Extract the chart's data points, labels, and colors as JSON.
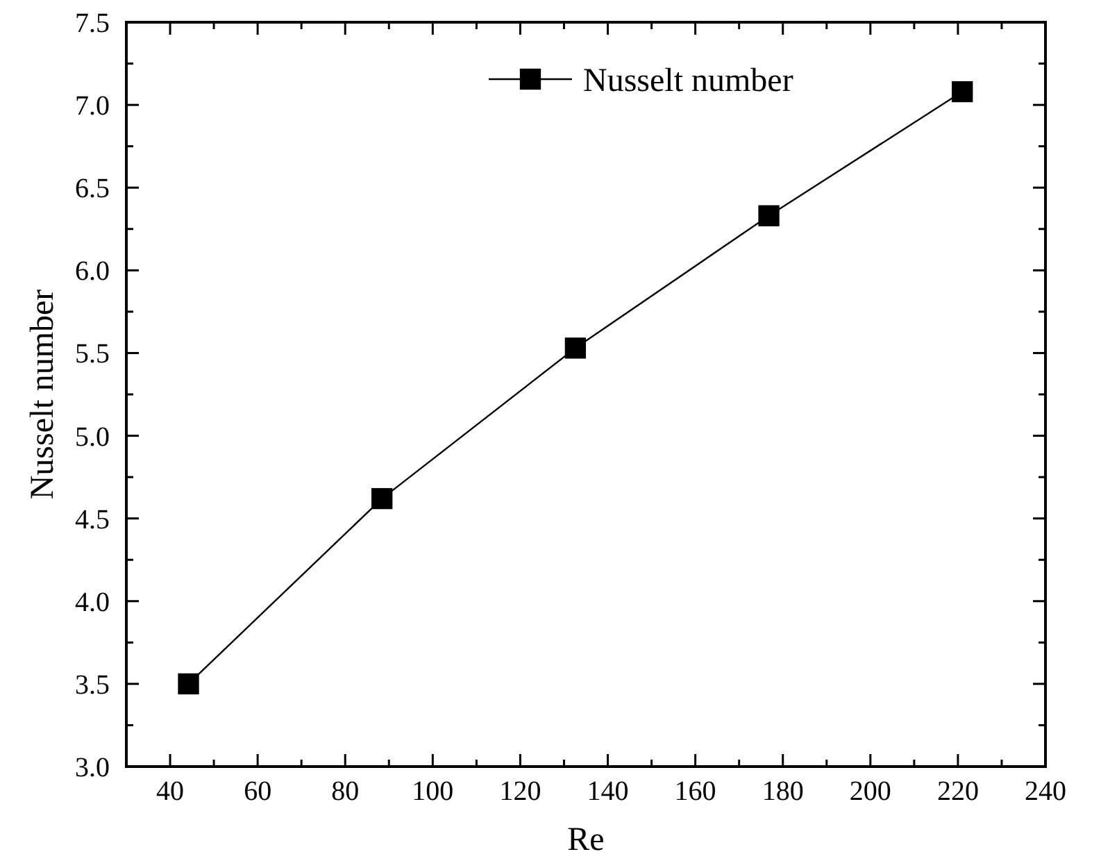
{
  "chart_data": {
    "type": "line",
    "xlabel": "Re",
    "ylabel": "Nusselt number",
    "x": [
      44.2,
      88.4,
      132.6,
      176.8,
      221
    ],
    "series": [
      {
        "name": "Nusselt number",
        "color": "#000000",
        "values": [
          3.5,
          4.62,
          5.53,
          6.33,
          7.08
        ]
      }
    ],
    "xlim": [
      30,
      240
    ],
    "xticks": [
      40,
      {
        "value": 50,
        "label": null
      },
      60,
      {
        "value": 70,
        "label": null
      },
      80,
      {
        "value": 90,
        "label": null
      },
      100,
      {
        "value": 110,
        "label": null
      },
      120,
      {
        "value": 130,
        "label": null
      },
      140,
      {
        "value": 150,
        "label": null
      },
      160,
      {
        "value": 170,
        "label": null
      },
      180,
      {
        "value": 190,
        "label": null
      },
      200,
      {
        "value": 210,
        "label": null
      },
      220,
      {
        "value": 230,
        "label": null
      },
      240
    ],
    "ylim": [
      3,
      7.5
    ],
    "yticks": [
      {
        "value": 3,
        "label": "3.0"
      },
      {
        "value": 3.25,
        "label": null
      },
      {
        "value": 3.5,
        "label": "3.5"
      },
      {
        "value": 3.75,
        "label": null
      },
      {
        "value": 4,
        "label": "4.0"
      },
      {
        "value": 4.25,
        "label": null
      },
      {
        "value": 4.5,
        "label": "4.5"
      },
      {
        "value": 4.75,
        "label": null
      },
      {
        "value": 5,
        "label": "5.0"
      },
      {
        "value": 5.25,
        "label": null
      },
      {
        "value": 5.5,
        "label": "5.5"
      },
      {
        "value": 5.75,
        "label": null
      },
      {
        "value": 6,
        "label": "6.0"
      },
      {
        "value": 6.25,
        "label": null
      },
      {
        "value": 6.5,
        "label": "6.5"
      },
      {
        "value": 6.75,
        "label": null
      },
      {
        "value": 7,
        "label": "7.0"
      },
      {
        "value": 7.25,
        "label": null
      },
      {
        "value": 7.5,
        "label": "7.5"
      }
    ],
    "legend": "top",
    "marker": "square",
    "line_style": "solid"
  }
}
